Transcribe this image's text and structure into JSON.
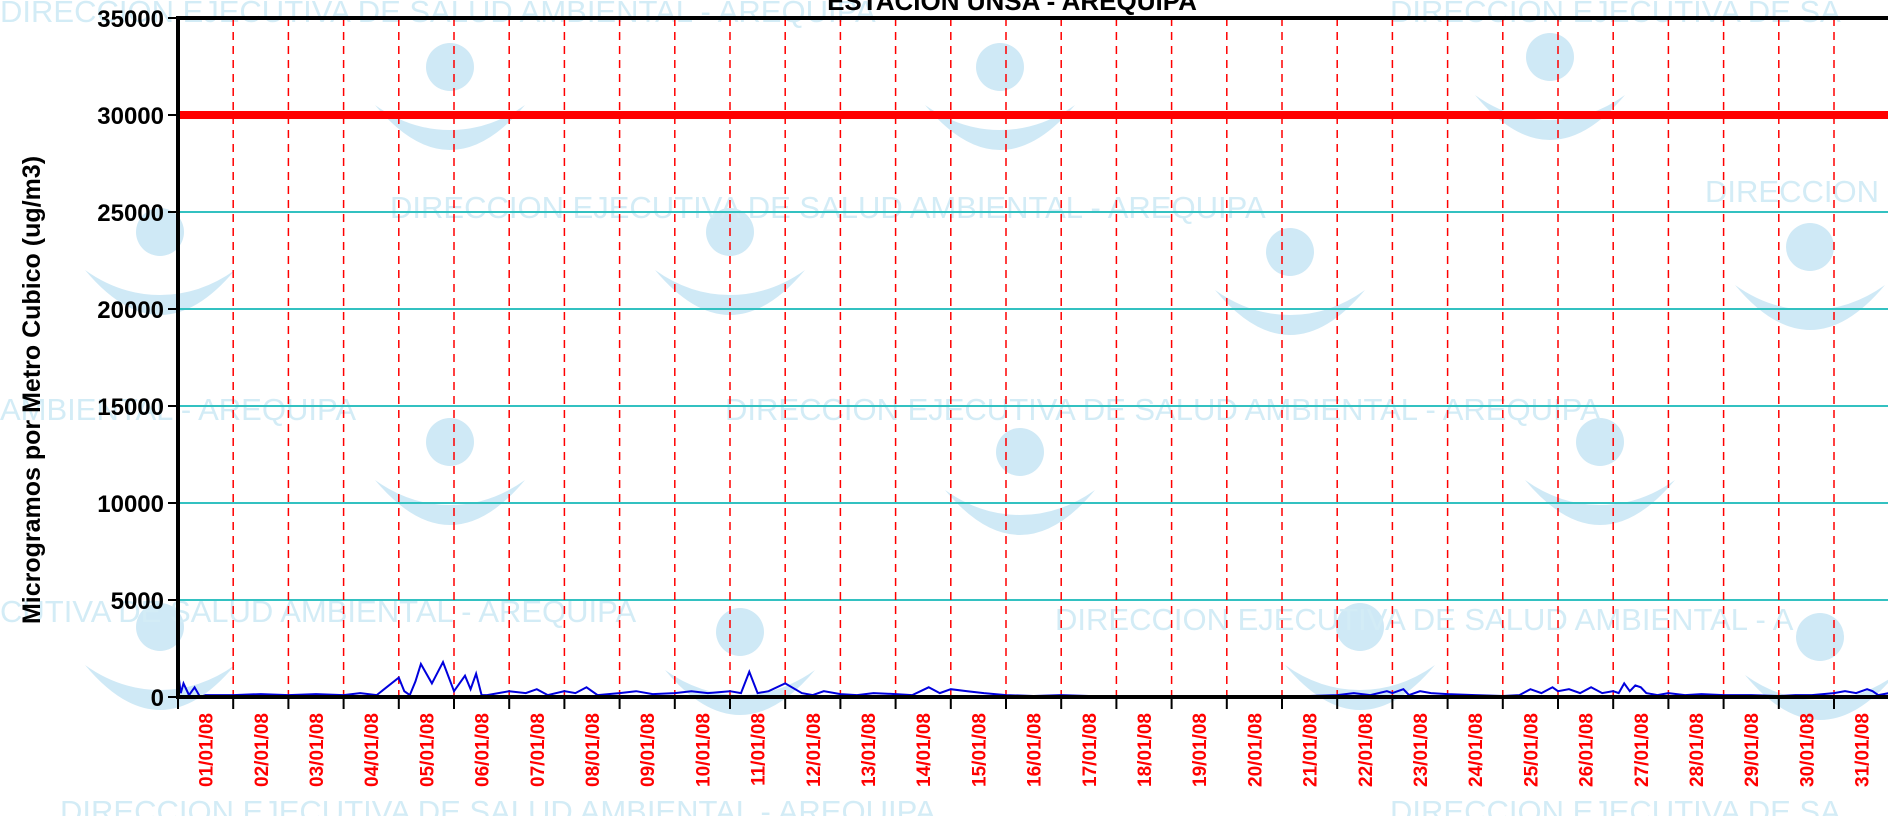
{
  "chart_data": {
    "type": "line",
    "title": "ESTACION UNSA - AREQUIPA",
    "ylabel": "Microgramos por Metro Cubico (ug/m3)",
    "xlabel": "",
    "ylim": [
      0,
      35000
    ],
    "yticks": [
      0,
      5000,
      10000,
      15000,
      20000,
      25000,
      30000,
      35000
    ],
    "grid": "horizontal solid, vertical dashed",
    "categories": [
      "01/01/08",
      "02/01/08",
      "03/01/08",
      "04/01/08",
      "05/01/08",
      "06/01/08",
      "07/01/08",
      "08/01/08",
      "09/01/08",
      "10/01/08",
      "11/01/08",
      "12/01/08",
      "13/01/08",
      "14/01/08",
      "15/01/08",
      "16/01/08",
      "17/01/08",
      "18/01/08",
      "19/01/08",
      "20/01/08",
      "21/01/08",
      "22/01/08",
      "23/01/08",
      "24/01/08",
      "25/01/08",
      "26/01/08",
      "27/01/08",
      "28/01/08",
      "29/01/08",
      "30/01/08",
      "31/01/08"
    ],
    "reference_line": {
      "value": 30000,
      "color": "#ff0000"
    },
    "series": [
      {
        "color": "#0000dd",
        "x": [
          0.0,
          0.05,
          0.1,
          0.2,
          0.3,
          0.4,
          0.5,
          1.0,
          1.5,
          2.0,
          2.5,
          3.0,
          3.3,
          3.6,
          4.0,
          4.1,
          4.2,
          4.3,
          4.4,
          4.6,
          4.8,
          5.0,
          5.2,
          5.3,
          5.4,
          5.5,
          5.6,
          6.0,
          6.3,
          6.5,
          6.7,
          7.0,
          7.2,
          7.4,
          7.6,
          8.0,
          8.3,
          8.6,
          9.0,
          9.3,
          9.6,
          10.0,
          10.2,
          10.35,
          10.5,
          10.7,
          11.0,
          11.3,
          11.5,
          11.7,
          12.0,
          12.3,
          12.6,
          13.0,
          13.3,
          13.6,
          13.8,
          14.0,
          14.3,
          14.6,
          15.0,
          15.5,
          16.0,
          16.5,
          17.0,
          17.5,
          18.0,
          18.5,
          19.0,
          19.5,
          20.0,
          20.5,
          21.0,
          21.3,
          21.6,
          21.9,
          22.0,
          22.2,
          22.3,
          22.5,
          22.7,
          23.0,
          23.5,
          24.0,
          24.3,
          24.5,
          24.7,
          24.9,
          25.0,
          25.2,
          25.4,
          25.6,
          25.8,
          26.0,
          26.1,
          26.2,
          26.3,
          26.4,
          26.5,
          26.6,
          26.8,
          27.0,
          27.3,
          27.6,
          28.0,
          28.5,
          29.0,
          29.3,
          29.6,
          29.8,
          30.0,
          30.2,
          30.4,
          30.6,
          30.7,
          30.8,
          31.0
        ],
        "y": [
          1300,
          200,
          700,
          100,
          500,
          0,
          100,
          100,
          150,
          100,
          150,
          100,
          200,
          100,
          1000,
          300,
          100,
          800,
          1700,
          700,
          1800,
          300,
          1100,
          400,
          1200,
          100,
          100,
          300,
          200,
          400,
          100,
          300,
          200,
          500,
          100,
          200,
          300,
          150,
          200,
          300,
          200,
          300,
          200,
          1300,
          200,
          300,
          700,
          200,
          100,
          300,
          150,
          100,
          200,
          150,
          100,
          500,
          200,
          400,
          300,
          200,
          100,
          50,
          100,
          50,
          50,
          50,
          50,
          50,
          50,
          50,
          50,
          50,
          100,
          200,
          100,
          300,
          200,
          400,
          100,
          300,
          200,
          150,
          100,
          50,
          100,
          400,
          200,
          500,
          300,
          400,
          200,
          500,
          200,
          300,
          200,
          700,
          300,
          600,
          500,
          200,
          100,
          200,
          100,
          150,
          100,
          100,
          50,
          100,
          100,
          150,
          200,
          300,
          200,
          400,
          300,
          100,
          200
        ]
      }
    ]
  }
}
